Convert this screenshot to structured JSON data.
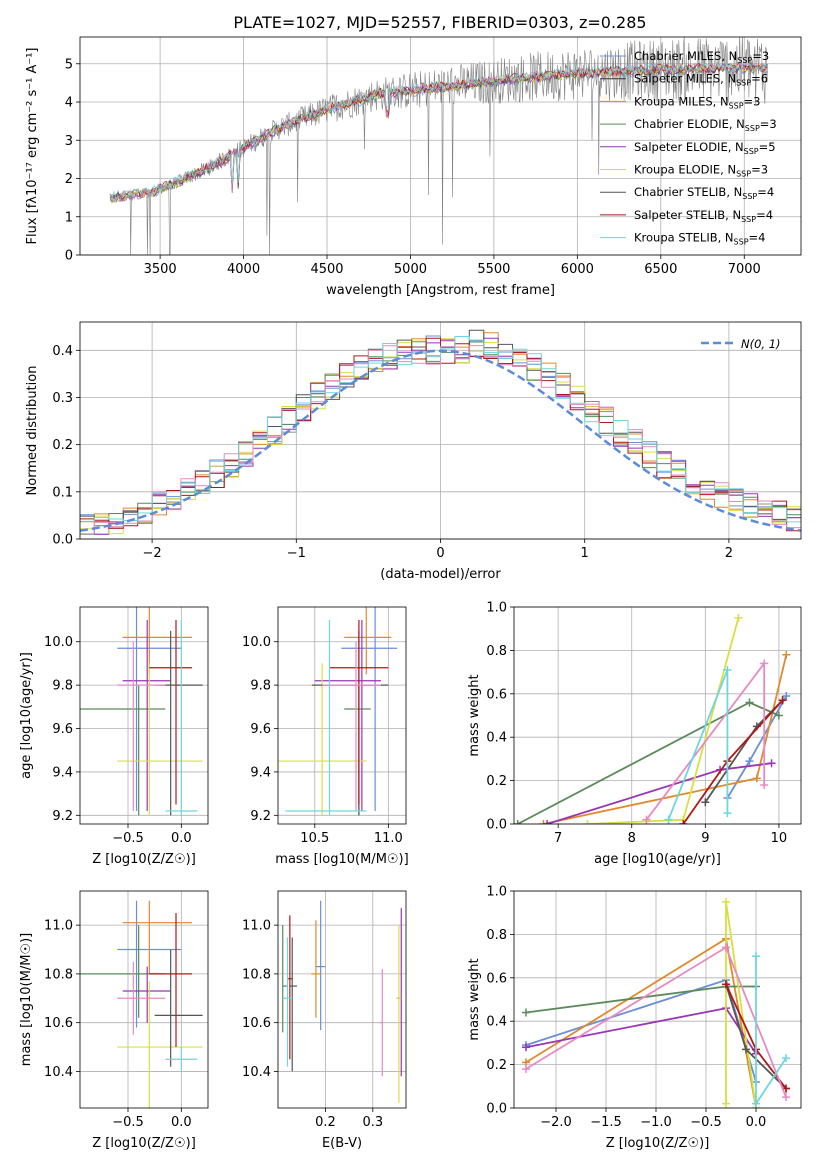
{
  "title": "PLATE=1027, MJD=52557, FIBERID=0303, z=0.285",
  "chart_data": [
    {
      "id": "spectrum",
      "type": "line",
      "xlabel": "wavelength [Angstrom, rest frame]",
      "ylabel": "Flux [fλ10⁻¹⁷ erg cm⁻² s⁻¹ A⁻¹]",
      "xlim": [
        3020,
        7340
      ],
      "ylim": [
        0,
        5.7
      ],
      "xticks": [
        3500,
        4000,
        4500,
        5000,
        5500,
        6000,
        6500,
        7000
      ],
      "yticks": [
        0,
        1,
        2,
        3,
        4,
        5
      ],
      "legend": [
        {
          "label": "Chabrier MILES, N_SSP=3",
          "color": "#6a8fd8"
        },
        {
          "label": "Salpeter MILES, N_SSP=6",
          "color": "#333333"
        },
        {
          "label": "Kroupa MILES, N_SSP=3",
          "color": "#e08a2c"
        },
        {
          "label": "Chabrier ELODIE, N_SSP=3",
          "color": "#5a8a5a"
        },
        {
          "label": "Salpeter ELODIE, N_SSP=5",
          "color": "#9a35b5"
        },
        {
          "label": "Kroupa ELODIE, N_SSP=3",
          "color": "#d8e040"
        },
        {
          "label": "Chabrier STELIB, N_SSP=4",
          "color": "#555555"
        },
        {
          "label": "Salpeter STELIB, N_SSP=4",
          "color": "#b01818"
        },
        {
          "label": "Kroupa STELIB, N_SSP=4",
          "color": "#6fd6dc"
        }
      ],
      "continuum_x": [
        3200,
        3450,
        3600,
        3800,
        4000,
        4200,
        4500,
        4800,
        5000,
        5300,
        5600,
        6000,
        6500,
        7100
      ],
      "continuum_y": [
        1.5,
        1.65,
        1.9,
        2.3,
        2.8,
        3.3,
        3.8,
        4.2,
        4.3,
        4.45,
        4.6,
        4.75,
        4.85,
        4.9
      ]
    },
    {
      "id": "residuals",
      "type": "line",
      "xlabel": "(data-model)/error",
      "ylabel": "Normed distribution",
      "xlim": [
        -2.5,
        2.5
      ],
      "ylim": [
        0,
        0.46
      ],
      "xticks": [
        -2,
        -1,
        0,
        1,
        2
      ],
      "yticks": [
        0.0,
        0.1,
        0.2,
        0.3,
        0.4
      ],
      "legend": [
        {
          "label": "N(0, 1)",
          "color": "#5b8bd9"
        }
      ]
    },
    {
      "id": "age_vs_Z",
      "type": "scatter",
      "xlabel": "Z [log10(Z/Z☉)]",
      "ylabel": "age  [log10(age/yr)]",
      "xlim": [
        -0.95,
        0.25
      ],
      "ylim": [
        9.16,
        10.16
      ],
      "xticks": [
        -0.5,
        0.0
      ],
      "yticks": [
        9.2,
        9.4,
        9.6,
        9.8,
        10.0
      ]
    },
    {
      "id": "age_vs_mass",
      "type": "scatter",
      "xlabel": "mass [log10(M/M☉)]",
      "ylabel": "",
      "xlim": [
        10.25,
        11.12
      ],
      "ylim": [
        9.16,
        10.16
      ],
      "xticks": [
        10.5,
        11.0
      ],
      "yticks": [
        9.2,
        9.4,
        9.6,
        9.8,
        10.0
      ]
    },
    {
      "id": "weight_vs_age",
      "type": "line",
      "xlabel": "age  [log10(age/yr)]",
      "ylabel": "mass weight",
      "xlim": [
        6.4,
        10.3
      ],
      "ylim": [
        0,
        1
      ],
      "xticks": [
        7,
        8,
        9,
        10
      ],
      "yticks": [
        0.0,
        0.2,
        0.4,
        0.6,
        0.8,
        1.0
      ]
    },
    {
      "id": "mass_vs_Z",
      "type": "scatter",
      "xlabel": "Z [log10(Z/Z☉)]",
      "ylabel": "mass [log10(M/M☉)]",
      "xlim": [
        -0.95,
        0.25
      ],
      "ylim": [
        10.25,
        11.14
      ],
      "xticks": [
        -0.5,
        0.0
      ],
      "yticks": [
        10.4,
        10.6,
        10.8,
        11.0
      ]
    },
    {
      "id": "mass_vs_EBV",
      "type": "scatter",
      "xlabel": "E(B-V)",
      "ylabel": "",
      "xlim": [
        0.1,
        0.37
      ],
      "ylim": [
        10.25,
        11.14
      ],
      "xticks": [
        0.2,
        0.3
      ],
      "yticks": [
        10.4,
        10.6,
        10.8,
        11.0
      ]
    },
    {
      "id": "weight_vs_Z",
      "type": "line",
      "xlabel": "Z [log10(Z/Z☉)]",
      "ylabel": "mass weight",
      "xlim": [
        -2.42,
        0.45
      ],
      "ylim": [
        0,
        1
      ],
      "xticks": [
        -2.0,
        -1.5,
        -1.0,
        -0.5,
        0.0
      ],
      "yticks": [
        0.0,
        0.2,
        0.4,
        0.6,
        0.8,
        1.0
      ]
    }
  ],
  "fits": [
    {
      "color": "#6a8fd8",
      "Z": [
        -0.42,
        -0.6,
        0.0
      ],
      "age": [
        9.97,
        9.22,
        10.16
      ],
      "mass": [
        10.9,
        10.58,
        11.1
      ],
      "massx": [
        10.91,
        10.68,
        11.06
      ],
      "ebv": [
        0.19,
        0.18,
        0.2
      ],
      "ebvy": [
        10.83,
        10.57,
        11.1
      ],
      "seq_age": [
        9.3,
        9.6,
        10.1
      ],
      "seq_w": [
        0.12,
        0.29,
        0.59
      ],
      "seq_Z": [
        -2.3,
        -0.3,
        0.0
      ],
      "seq_Zw": [
        0.29,
        0.59,
        0.12
      ]
    },
    {
      "color": "#e08a2c",
      "Z": [
        -0.3,
        -0.55,
        0.1
      ],
      "age": [
        10.02,
        9.85,
        10.16
      ],
      "mass": [
        11.01,
        10.8,
        11.1
      ],
      "massx": [
        10.85,
        10.7,
        11.02
      ],
      "ebv": [
        0.18,
        0.17,
        0.19
      ],
      "ebvy": [
        10.8,
        10.62,
        11.02
      ],
      "seq_age": [
        6.8,
        9.7,
        10.1
      ],
      "seq_w": [
        0.0,
        0.21,
        0.78
      ],
      "seq_Z": [
        -2.3,
        -0.3,
        0.0
      ],
      "seq_Zw": [
        0.21,
        0.78,
        0.0
      ]
    },
    {
      "color": "#5a8a5a",
      "Z": [
        -0.4,
        -0.95,
        -0.15
      ],
      "age": [
        9.69,
        9.2,
        9.8
      ],
      "mass": [
        10.8,
        10.62,
        11.0
      ],
      "massx": [
        10.8,
        10.7,
        10.88
      ],
      "ebv": [
        0.11,
        0.11,
        0.12
      ],
      "ebvy": [
        10.75,
        10.56,
        11.0
      ],
      "seq_age": [
        6.45,
        9.6,
        10.0
      ],
      "seq_w": [
        0.0,
        0.56,
        0.5
      ],
      "seq_Z": [
        -2.3,
        -0.3,
        0.0
      ],
      "seq_Zw": [
        0.44,
        0.56,
        0.56
      ]
    },
    {
      "color": "#9a35b5",
      "Z": [
        -0.32,
        -0.55,
        -0.1
      ],
      "age": [
        9.82,
        9.22,
        10.1
      ],
      "mass": [
        10.73,
        10.6,
        10.83
      ],
      "massx": [
        10.82,
        10.5,
        10.95
      ],
      "ebv": [
        0.36,
        0.35,
        0.36
      ],
      "ebvy": [
        10.7,
        10.38,
        11.07
      ],
      "seq_age": [
        6.85,
        9.2,
        9.9
      ],
      "seq_w": [
        0.0,
        0.25,
        0.28
      ],
      "seq_Z": [
        -2.3,
        -0.3,
        0.0
      ],
      "seq_Zw": [
        0.28,
        0.46,
        0.25
      ]
    },
    {
      "color": "#d8e040",
      "Z": [
        -0.3,
        -0.6,
        0.2
      ],
      "age": [
        9.45,
        9.2,
        9.9
      ],
      "mass": [
        10.5,
        10.25,
        10.77
      ],
      "massx": [
        10.55,
        10.25,
        10.85
      ],
      "ebv": [
        0.355,
        0.35,
        0.36
      ],
      "ebvy": [
        10.7,
        10.27,
        11.0
      ],
      "seq_age": [
        7.4,
        8.7,
        9.45
      ],
      "seq_w": [
        0.0,
        0.02,
        0.95
      ],
      "seq_Z": [
        -0.3,
        -0.3,
        0.0
      ],
      "seq_Zw": [
        0.02,
        0.95,
        0.0
      ]
    },
    {
      "color": "#555555",
      "Z": [
        -0.1,
        -0.25,
        0.2
      ],
      "age": [
        9.8,
        9.2,
        10.05
      ],
      "mass": [
        10.63,
        10.42,
        10.9
      ],
      "massx": [
        10.8,
        10.48,
        11.0
      ],
      "ebv": [
        0.13,
        0.125,
        0.14
      ],
      "ebvy": [
        10.75,
        10.4,
        10.95
      ],
      "seq_age": [
        9.0,
        9.7,
        10.05
      ],
      "seq_w": [
        0.1,
        0.45,
        0.57
      ],
      "seq_Z": [
        -0.3,
        -0.1,
        0.3
      ],
      "seq_Zw": [
        0.57,
        0.27,
        0.09
      ]
    },
    {
      "color": "#b01818",
      "Z": [
        -0.05,
        -0.3,
        0.1
      ],
      "age": [
        9.88,
        9.25,
        10.1
      ],
      "mass": [
        10.8,
        10.5,
        11.05
      ],
      "massx": [
        10.8,
        10.6,
        11.0
      ],
      "ebv": [
        0.125,
        0.12,
        0.13
      ],
      "ebvy": [
        10.78,
        10.45,
        11.04
      ],
      "seq_age": [
        8.7,
        9.3,
        10.05
      ],
      "seq_w": [
        0.0,
        0.29,
        0.57
      ],
      "seq_Z": [
        -0.3,
        0.0,
        0.3
      ],
      "seq_Zw": [
        0.57,
        0.27,
        0.09
      ]
    },
    {
      "color": "#e78ac3",
      "Z": [
        -0.45,
        -0.6,
        -0.15
      ],
      "age": [
        9.8,
        9.22,
        10.0
      ],
      "mass": [
        10.7,
        10.55,
        10.85
      ],
      "massx": [
        10.78,
        10.55,
        10.95
      ],
      "ebv": [
        0.32,
        0.315,
        0.32
      ],
      "ebvy": [
        10.6,
        10.38,
        10.82
      ],
      "seq_age": [
        8.2,
        9.8,
        9.8
      ],
      "seq_w": [
        0.02,
        0.74,
        0.18
      ],
      "seq_Z": [
        -2.3,
        -0.3,
        0.3
      ],
      "seq_Zw": [
        0.18,
        0.74,
        0.05
      ]
    },
    {
      "color": "#6fd6dc",
      "Z": [
        0.0,
        -0.15,
        0.15
      ],
      "age": [
        9.22,
        9.2,
        10.1
      ],
      "mass": [
        10.45,
        10.4,
        10.5
      ],
      "massx": [
        10.6,
        10.3,
        10.85
      ],
      "ebv": [
        0.12,
        0.11,
        0.13
      ],
      "ebvy": [
        10.7,
        10.42,
        10.95
      ],
      "seq_age": [
        8.5,
        9.3,
        9.3
      ],
      "seq_w": [
        0.02,
        0.71,
        0.05
      ],
      "seq_Z": [
        0.0,
        0.0,
        0.3
      ],
      "seq_Zw": [
        0.7,
        0.02,
        0.23
      ]
    }
  ]
}
